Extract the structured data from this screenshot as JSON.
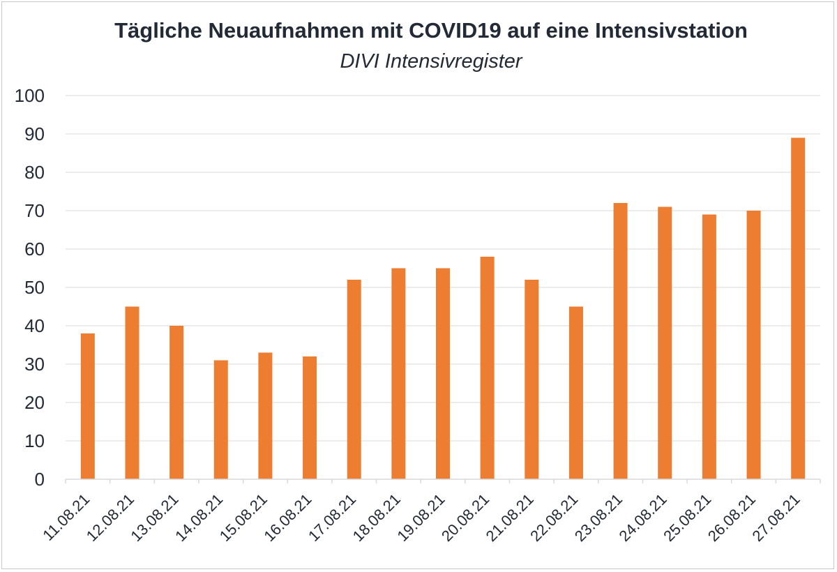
{
  "chart_data": {
    "type": "bar",
    "title": "Tägliche Neuaufnahmen mit COVID19 auf eine Intensivstation",
    "subtitle": "DIVI Intensivregister",
    "categories": [
      "11.08.21",
      "12.08.21",
      "13.08.21",
      "14.08.21",
      "15.08.21",
      "16.08.21",
      "17.08.21",
      "18.08.21",
      "19.08.21",
      "20.08.21",
      "21.08.21",
      "22.08.21",
      "23.08.21",
      "24.08.21",
      "25.08.21",
      "26.08.21",
      "27.08.21"
    ],
    "values": [
      38,
      45,
      40,
      31,
      33,
      32,
      52,
      55,
      55,
      58,
      52,
      45,
      72,
      71,
      69,
      70,
      89
    ],
    "ylim": [
      0,
      100
    ],
    "yticks": [
      0,
      10,
      20,
      30,
      40,
      50,
      60,
      70,
      80,
      90,
      100
    ],
    "grid": true,
    "legend": "none",
    "bar_color": "#ed7d31",
    "grid_color": "#d9d9d9",
    "text_color": "#222a35"
  }
}
